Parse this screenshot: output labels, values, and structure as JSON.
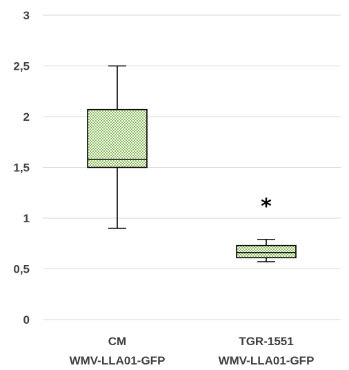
{
  "chart_data": {
    "type": "boxplot",
    "title": "",
    "xlabel": "",
    "ylabel": "",
    "ylim": [
      0,
      3
    ],
    "yticks": [
      {
        "value": 0,
        "label": "0"
      },
      {
        "value": 0.5,
        "label": "0,5"
      },
      {
        "value": 1,
        "label": "1"
      },
      {
        "value": 1.5,
        "label": "1,5"
      },
      {
        "value": 2,
        "label": "2"
      },
      {
        "value": 2.5,
        "label": "2,5"
      },
      {
        "value": 3,
        "label": "3"
      }
    ],
    "grid": true,
    "fill_color": "#70ad47",
    "categories": [
      {
        "line1": "CM",
        "line2": "WMV-LLA01-GFP",
        "min": 0.9,
        "q1": 1.5,
        "median": 1.58,
        "q3": 2.07,
        "max": 2.5,
        "annotation": ""
      },
      {
        "line1": "TGR-1551",
        "line2": "WMV-LLA01-GFP",
        "min": 0.57,
        "q1": 0.61,
        "median": 0.66,
        "q3": 0.73,
        "max": 0.79,
        "annotation": "*"
      }
    ]
  }
}
